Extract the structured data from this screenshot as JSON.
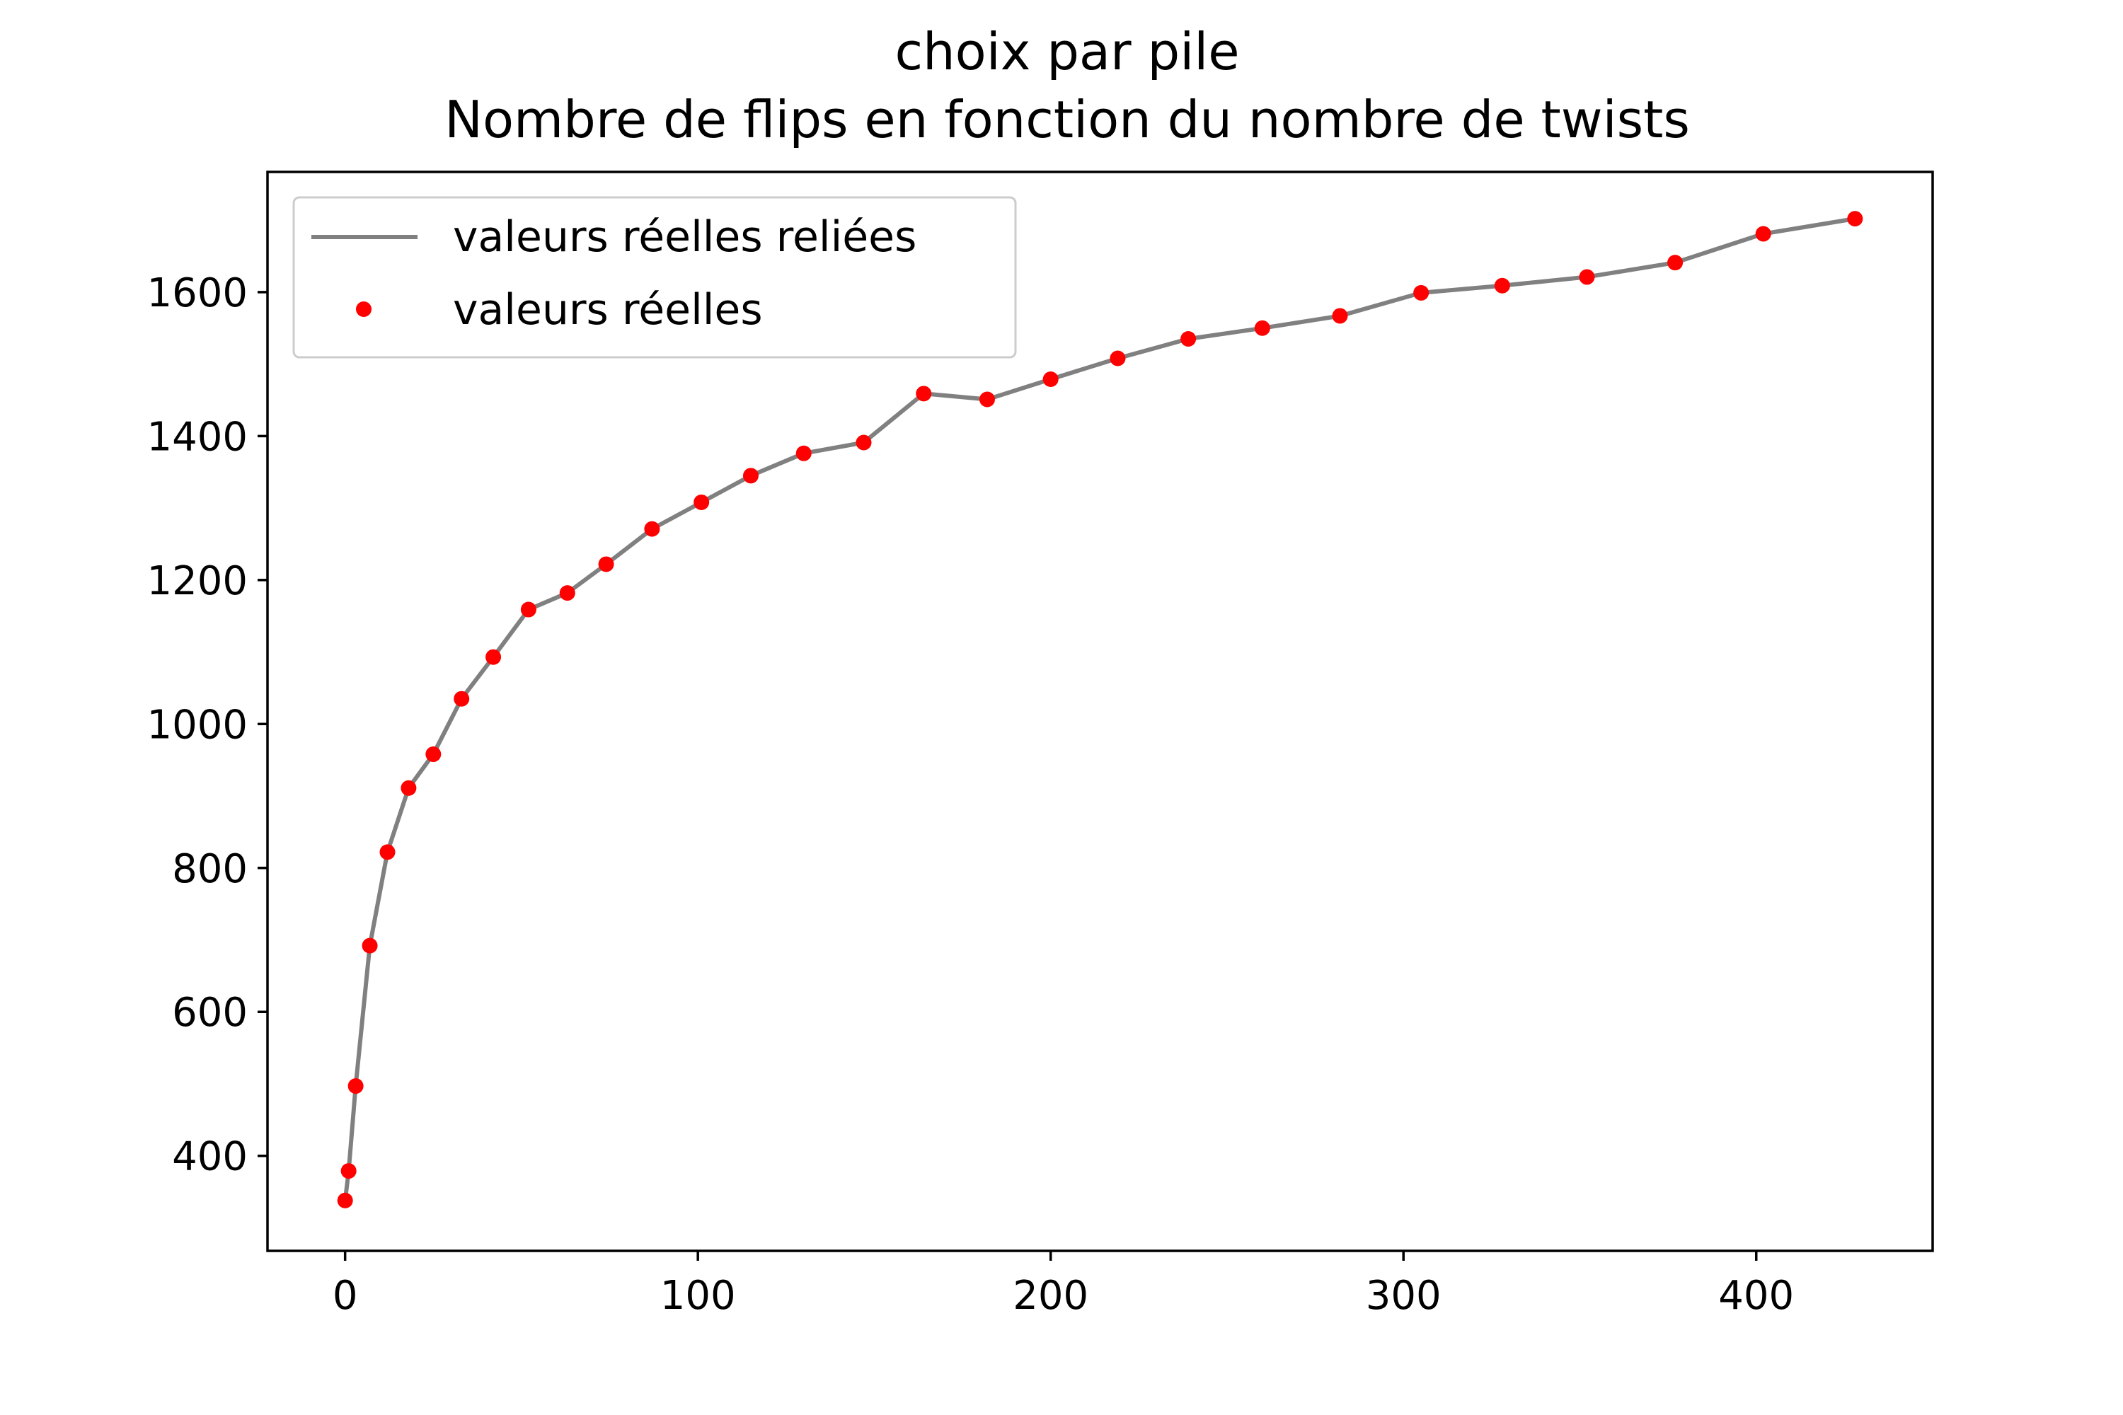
{
  "chart_data": {
    "type": "line",
    "title_line1": "choix par pile",
    "title_line2": "Nombre de flips en fonction du nombre de twists",
    "xlabel": "",
    "ylabel": "",
    "xlim": [
      -22,
      450
    ],
    "ylim": [
      268,
      1767
    ],
    "xticks": [
      0,
      100,
      200,
      300,
      400
    ],
    "yticks": [
      400,
      600,
      800,
      1000,
      1200,
      1400,
      1600
    ],
    "grid": false,
    "legend_position": "upper-left",
    "series": [
      {
        "name": "valeurs réelles reliées",
        "style": "line",
        "color": "#808080",
        "x": [
          0,
          1,
          3,
          7,
          12,
          18,
          25,
          33,
          42,
          52,
          63,
          74,
          87,
          101,
          115,
          130,
          147,
          164,
          182,
          200,
          219,
          239,
          260,
          282,
          305,
          328,
          352,
          377,
          402,
          428
        ],
        "y": [
          338,
          379,
          497,
          692,
          822,
          911,
          958,
          1035,
          1093,
          1159,
          1182,
          1222,
          1271,
          1308,
          1345,
          1376,
          1391,
          1459,
          1451,
          1479,
          1508,
          1535,
          1550,
          1567,
          1599,
          1609,
          1621,
          1641,
          1681,
          1702
        ]
      },
      {
        "name": "valeurs réelles",
        "style": "markers",
        "color": "#ff0000",
        "x": [
          0,
          1,
          3,
          7,
          12,
          18,
          25,
          33,
          42,
          52,
          63,
          74,
          87,
          101,
          115,
          130,
          147,
          164,
          182,
          200,
          219,
          239,
          260,
          282,
          305,
          328,
          352,
          377,
          402,
          428
        ],
        "y": [
          338,
          379,
          497,
          692,
          822,
          911,
          958,
          1035,
          1093,
          1159,
          1182,
          1222,
          1271,
          1308,
          1345,
          1376,
          1391,
          1459,
          1451,
          1479,
          1508,
          1535,
          1550,
          1567,
          1599,
          1609,
          1621,
          1641,
          1681,
          1702
        ]
      }
    ]
  }
}
